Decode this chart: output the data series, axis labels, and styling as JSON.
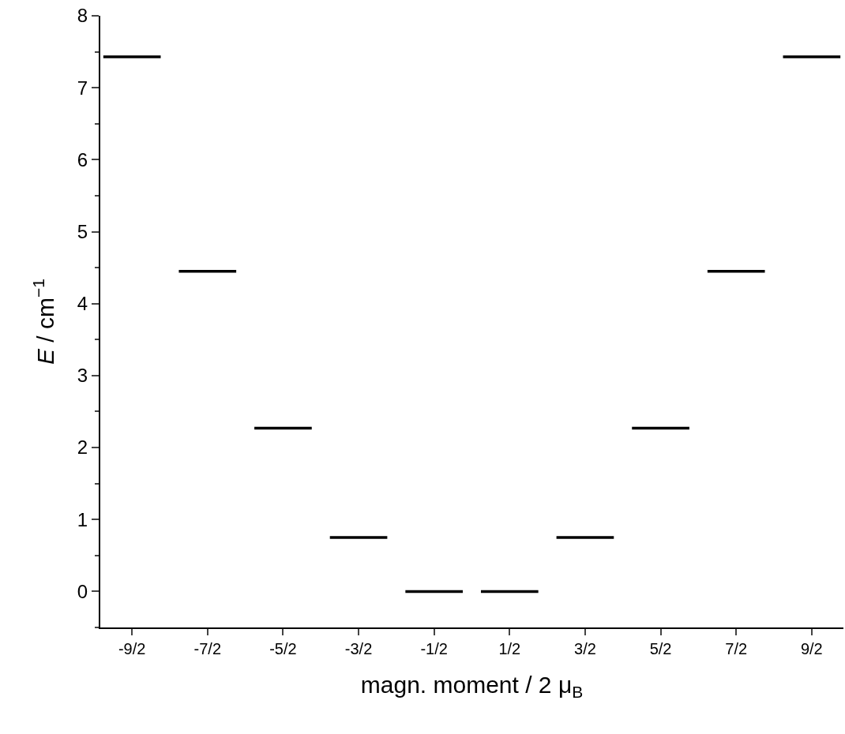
{
  "chart_data": {
    "type": "line",
    "xlabel": "magn. moment / 2 μ$_{B}$",
    "ylabel": "E / cm$^{−1}$",
    "series": [
      {
        "color": "#000000",
        "x": [
          -4.88,
          -4.12
        ],
        "values": [
          7.43,
          7.43
        ]
      },
      {
        "color": "#000000",
        "x": [
          -3.88,
          -3.12
        ],
        "values": [
          4.45,
          4.45
        ]
      },
      {
        "color": "#000000",
        "x": [
          -2.88,
          -2.12
        ],
        "values": [
          2.27,
          2.27
        ]
      },
      {
        "color": "#000000",
        "x": [
          -1.88,
          -1.12
        ],
        "values": [
          0.75,
          0.75
        ]
      },
      {
        "color": "#000000",
        "x": [
          -0.88,
          -0.12
        ],
        "values": [
          0,
          0
        ]
      },
      {
        "color": "#000000",
        "x": [
          0.12,
          0.88
        ],
        "values": [
          0,
          0
        ]
      },
      {
        "color": "#000000",
        "x": [
          1.12,
          1.88
        ],
        "values": [
          0.75,
          0.75
        ]
      },
      {
        "color": "#000000",
        "x": [
          2.12,
          2.88
        ],
        "values": [
          2.27,
          2.27
        ]
      },
      {
        "color": "#000000",
        "x": [
          3.12,
          3.88
        ],
        "values": [
          4.45,
          4.45
        ]
      },
      {
        "color": "#000000",
        "x": [
          4.12,
          4.88
        ],
        "values": [
          7.43,
          7.43
        ]
      }
    ],
    "xlim": [
      -4.92,
      4.92
    ],
    "xticks": [
      {
        "value": -4.5,
        "label": "-9/2"
      },
      {
        "value": -3.5,
        "label": "-7/2"
      },
      {
        "value": -2.5,
        "label": "-5/2"
      },
      {
        "value": -1.5,
        "label": "-3/2"
      },
      {
        "value": -0.5,
        "label": "-1/2"
      },
      {
        "value": 0.5,
        "label": "1/2"
      },
      {
        "value": 1.5,
        "label": "3/2"
      },
      {
        "value": 2.5,
        "label": "5/2"
      },
      {
        "value": 3.5,
        "label": "7/2"
      },
      {
        "value": 4.5,
        "label": "9/2"
      }
    ],
    "ylim": [
      -0.5,
      8
    ],
    "yticks": [
      0,
      1,
      2,
      3,
      4,
      5,
      6,
      7,
      8
    ],
    "marker": "none",
    "line_style": "solid",
    "grid": false
  }
}
